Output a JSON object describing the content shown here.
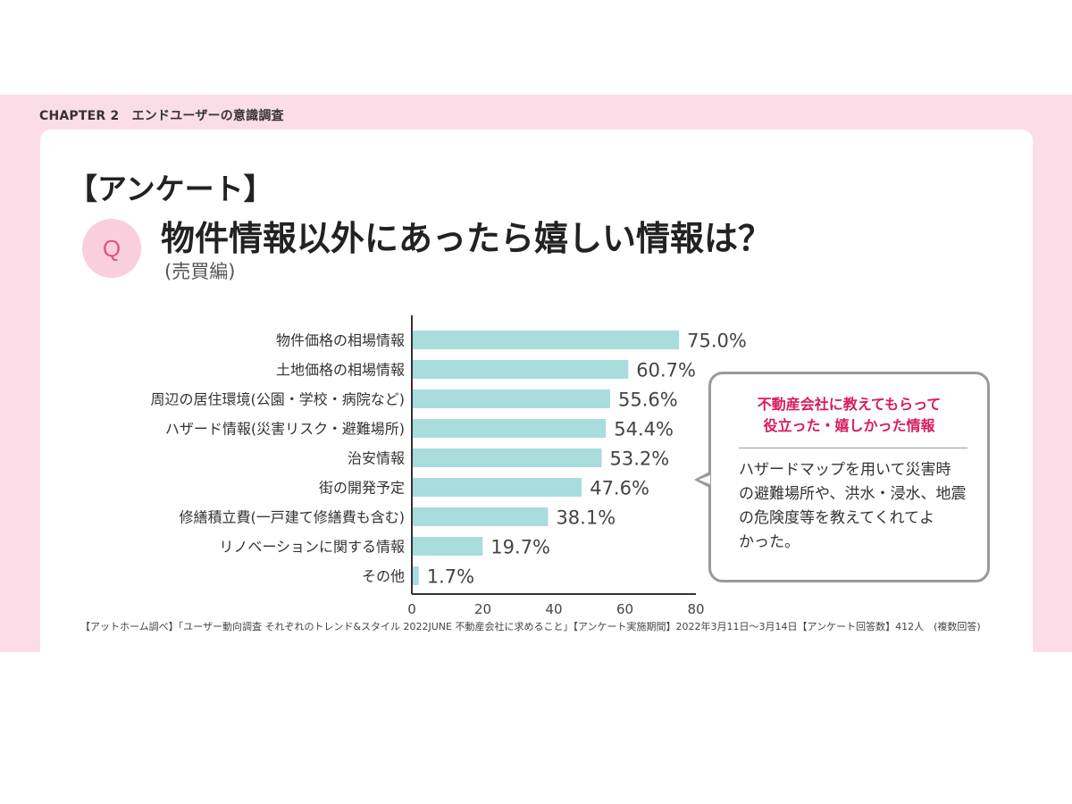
{
  "header": {
    "chapter": "CHAPTER 2　エンドユーザーの意識調査"
  },
  "survey_label": "【アンケート】",
  "question": {
    "badge": "Q",
    "title": "物件情報以外にあったら嬉しい情報は？",
    "subtitle": "(売買編)"
  },
  "chart_data": {
    "type": "bar",
    "orientation": "horizontal",
    "categories": [
      "物件価格の相場情報",
      "土地価格の相場情報",
      "周辺の居住環境(公園・学校・病院など)",
      "ハザード情報(災害リスク・避難場所)",
      "治安情報",
      "街の開発予定",
      "修繕積立費(一戸建て修繕費も含む)",
      "リノベーションに関する情報",
      "その他"
    ],
    "values": [
      75.0,
      60.7,
      55.6,
      54.4,
      53.2,
      47.6,
      38.1,
      19.7,
      1.7
    ],
    "value_labels": [
      "75.0%",
      "60.7%",
      "55.6%",
      "54.4%",
      "53.2%",
      "47.6%",
      "38.1%",
      "19.7%",
      "1.7%"
    ],
    "xlim": [
      0,
      80
    ],
    "xticks": [
      "0",
      "20",
      "40",
      "60",
      "80"
    ],
    "bar_color": "#a9dcdc",
    "grid": false
  },
  "callout": {
    "title_lines": [
      "不動産会社に教えてもらって",
      "役立った・嬉しかった情報"
    ],
    "body_lines": [
      "ハザードマップを用いて災害時",
      "の避難場所や、洪水・浸水、地震",
      "の危険度等を教えてくれてよ",
      "かった。"
    ],
    "title_color": "#d81b60"
  },
  "footer": {
    "source": "【アットホーム調べ】「ユーザー動向調査 それぞれのトレンド&スタイル 2022JUNE 不動産会社に求めること」【アンケート実施期間】2022年3月11日〜3月14日【アンケート回答数】412人　(複数回答)"
  },
  "colors": {
    "page_band": "#fbdde8",
    "badge_bg": "#f9cfdd",
    "badge_text": "#e0547f"
  }
}
